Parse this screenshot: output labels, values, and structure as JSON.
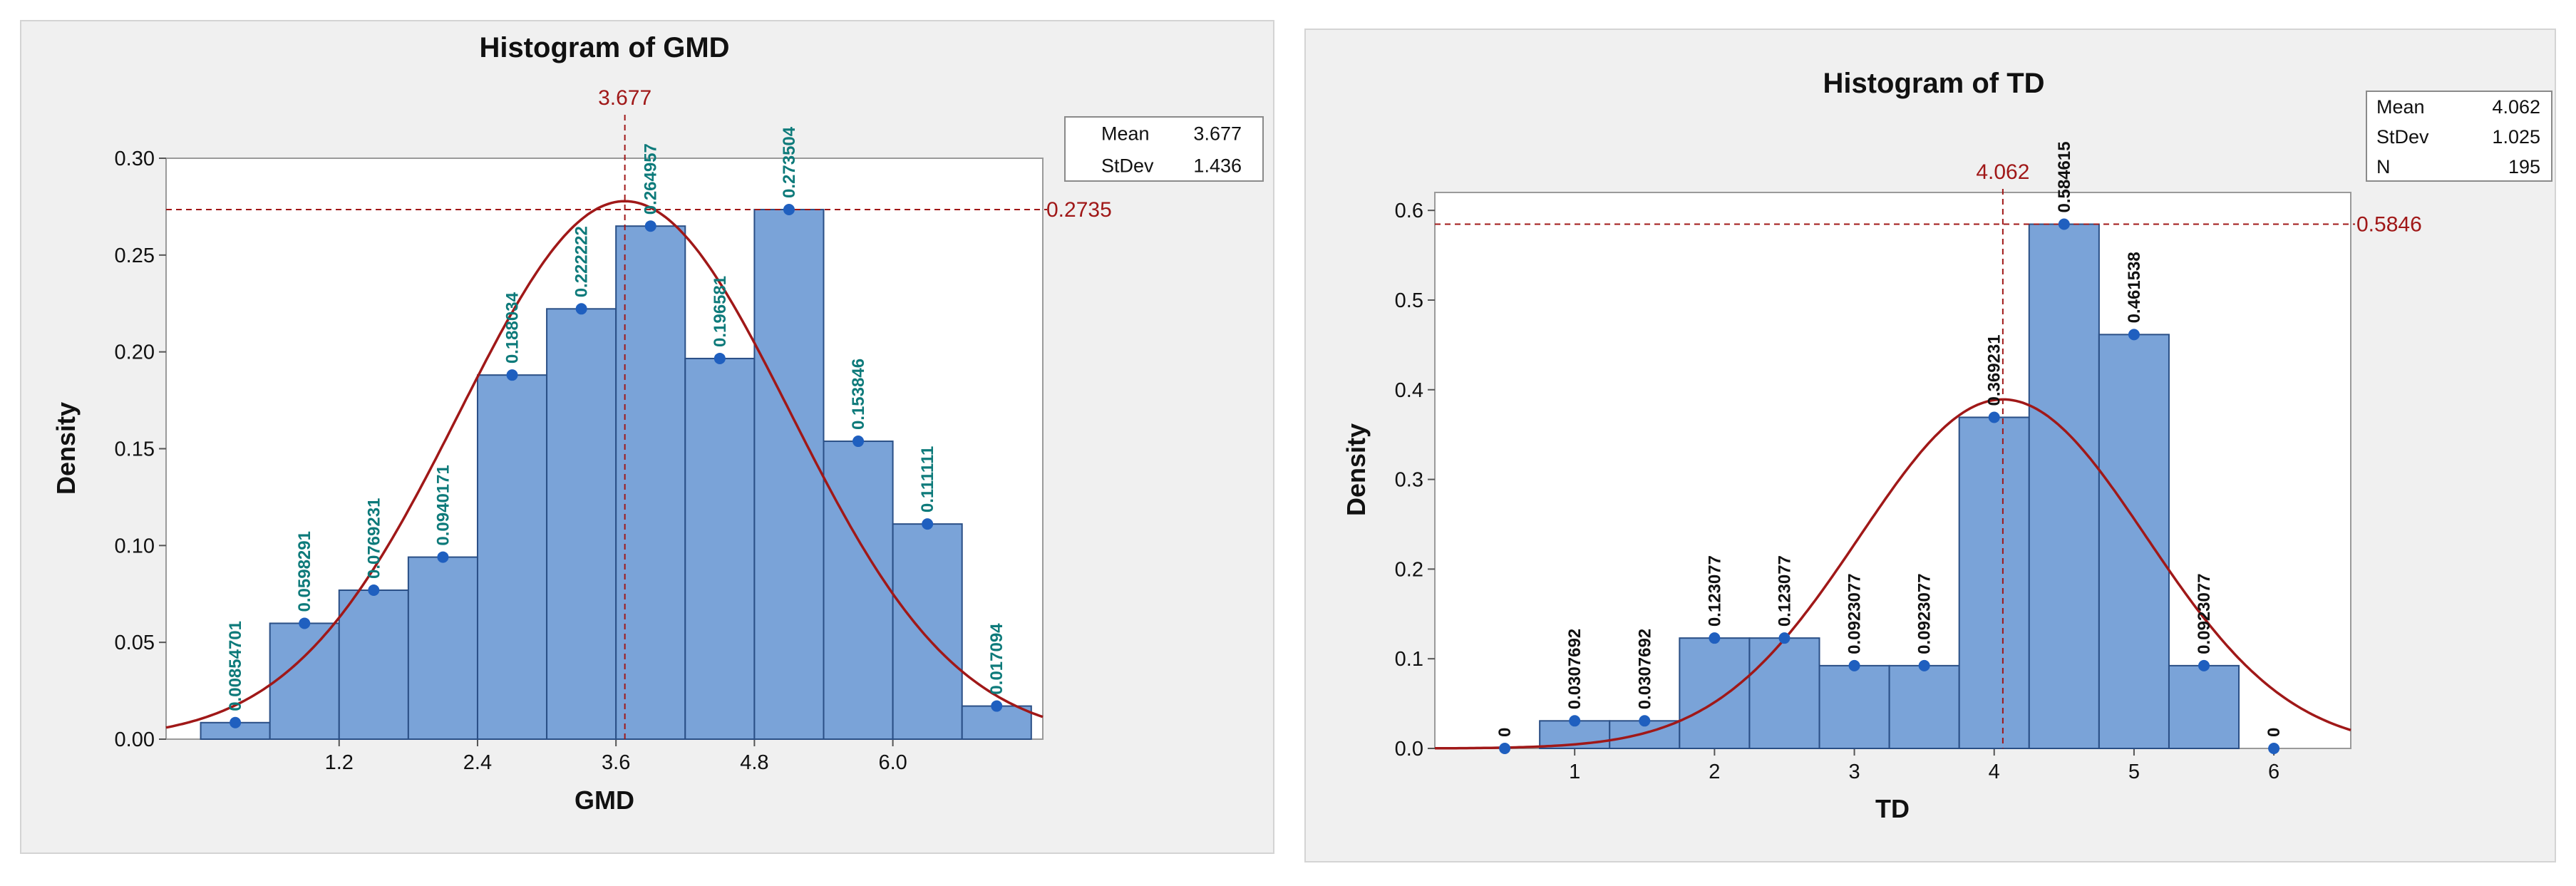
{
  "chart_data": [
    {
      "type": "bar",
      "title": "Histogram of GMD",
      "xlabel": "GMD",
      "ylabel": "Density",
      "xlim": [
        -0.3,
        7.3
      ],
      "ylim": [
        0,
        0.3
      ],
      "bin_width": 0.6,
      "bin_starts": [
        0,
        0.6,
        1.2,
        1.8,
        2.4,
        3.0,
        3.6,
        4.2,
        4.8,
        5.4,
        6.0,
        6.6
      ],
      "values": [
        0.00854701,
        0.0598291,
        0.0769231,
        0.0940171,
        0.188034,
        0.222222,
        0.264957,
        0.196581,
        0.273504,
        0.153846,
        0.111111,
        0.017094
      ],
      "data_labels": [
        "0.00854701",
        "0.0598291",
        "0.0769231",
        "0.0940171",
        "0.188034",
        "0.222222",
        "0.264957",
        "0.196581",
        "0.273504",
        "0.153846",
        "0.111111",
        "0.017094"
      ],
      "x_ticks": [
        1.2,
        2.4,
        3.6,
        4.8,
        6.0
      ],
      "x_tick_labels": [
        "1.2",
        "2.4",
        "3.6",
        "4.8",
        "6.0"
      ],
      "y_ticks": [
        0,
        0.05,
        0.1,
        0.15,
        0.2,
        0.25,
        0.3
      ],
      "y_tick_labels": [
        "0.00",
        "0.05",
        "0.10",
        "0.15",
        "0.20",
        "0.25",
        "0.30"
      ],
      "fit": {
        "mean": 3.677,
        "stdev": 1.436
      },
      "ref_lines": {
        "x": 3.677,
        "x_label": "3.677",
        "y": 0.2735,
        "y_label": "0.2735"
      },
      "legend": [
        {
          "label": "Mean",
          "value": "3.677"
        },
        {
          "label": "StDev",
          "value": "1.436"
        }
      ],
      "colors": {
        "bar_fill": "#7aa3d8",
        "bar_edge": "#2a4f86",
        "curve": "#a01818",
        "point": "#1f5fbf",
        "data_label": "#0d7a7a"
      }
    },
    {
      "type": "bar",
      "title": "Histogram of TD",
      "xlabel": "TD",
      "ylabel": "Density",
      "xlim": [
        0,
        6.55
      ],
      "ylim": [
        0,
        0.62
      ],
      "bin_width": 0.5,
      "bin_starts": [
        0.25,
        0.75,
        1.25,
        1.75,
        2.25,
        2.75,
        3.25,
        3.75,
        4.25,
        4.75,
        5.25,
        5.75
      ],
      "values": [
        0,
        0.0307692,
        0.0307692,
        0.123077,
        0.123077,
        0.0923077,
        0.0923077,
        0.369231,
        0.584615,
        0.461538,
        0.0923077,
        0
      ],
      "data_labels": [
        "0",
        "0.0307692",
        "0.0307692",
        "0.123077",
        "0.123077",
        "0.0923077",
        "0.0923077",
        "0.369231",
        "0.584615",
        "0.461538",
        "0.0923077",
        "0"
      ],
      "x_ticks": [
        1,
        2,
        3,
        4,
        5,
        6
      ],
      "x_tick_labels": [
        "1",
        "2",
        "3",
        "4",
        "5",
        "6"
      ],
      "y_ticks": [
        0,
        0.1,
        0.2,
        0.3,
        0.4,
        0.5,
        0.6
      ],
      "y_tick_labels": [
        "0.0",
        "0.1",
        "0.2",
        "0.3",
        "0.4",
        "0.5",
        "0.6"
      ],
      "fit": {
        "mean": 4.062,
        "stdev": 1.025
      },
      "ref_lines": {
        "x": 4.062,
        "x_label": "4.062",
        "y": 0.5846,
        "y_label": "0.5846"
      },
      "legend": [
        {
          "label": "Mean",
          "value": "4.062"
        },
        {
          "label": "StDev",
          "value": "1.025"
        },
        {
          "label": "N",
          "value": "195"
        }
      ],
      "colors": {
        "bar_fill": "#7aa3d8",
        "bar_edge": "#2a4f86",
        "curve": "#a01818",
        "point": "#1f5fbf",
        "data_label": "#111111"
      }
    }
  ]
}
